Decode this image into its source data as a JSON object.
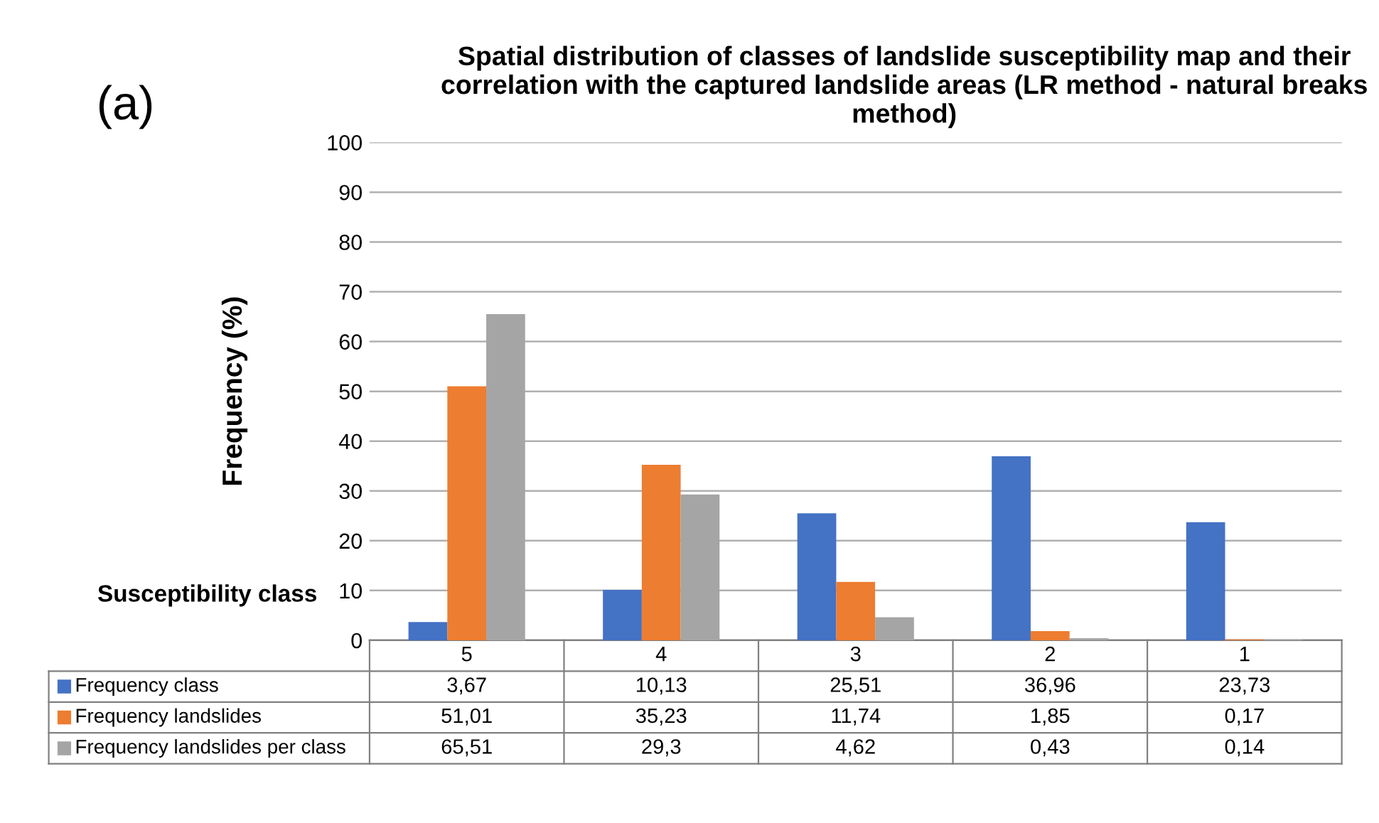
{
  "chart_data": {
    "type": "bar",
    "title": "Spatial distribution of classes of landslide susceptibility map and their correlation with the captured landslide areas (LR method - natural breaks method)",
    "xlabel": "Susceptibility class",
    "ylabel": "Frequency (%)",
    "annotations": [
      "(a)"
    ],
    "categories": [
      "5",
      "4",
      "3",
      "2",
      "1"
    ],
    "series": [
      {
        "name": "Frequency class",
        "color": "#4472c4",
        "values": [
          3.67,
          10.13,
          25.51,
          36.96,
          23.73
        ],
        "value_labels": [
          "3,67",
          "10,13",
          "25,51",
          "36,96",
          "23,73"
        ]
      },
      {
        "name": "Frequency landslides",
        "color": "#ed7d31",
        "values": [
          51.01,
          35.23,
          11.74,
          1.85,
          0.17
        ],
        "value_labels": [
          "51,01",
          "35,23",
          "11,74",
          "1,85",
          "0,17"
        ]
      },
      {
        "name": "Frequency landslides per class",
        "color": "#a5a5a5",
        "values": [
          65.51,
          29.3,
          4.62,
          0.43,
          0.14
        ],
        "value_labels": [
          "65,51",
          "29,3",
          "4,62",
          "0,43",
          "0,14"
        ]
      }
    ],
    "ylim": [
      0,
      100
    ],
    "yticks": [
      0,
      10,
      20,
      30,
      40,
      50,
      60,
      70,
      80,
      90,
      100
    ],
    "grid": "y",
    "legend": "bottom"
  }
}
